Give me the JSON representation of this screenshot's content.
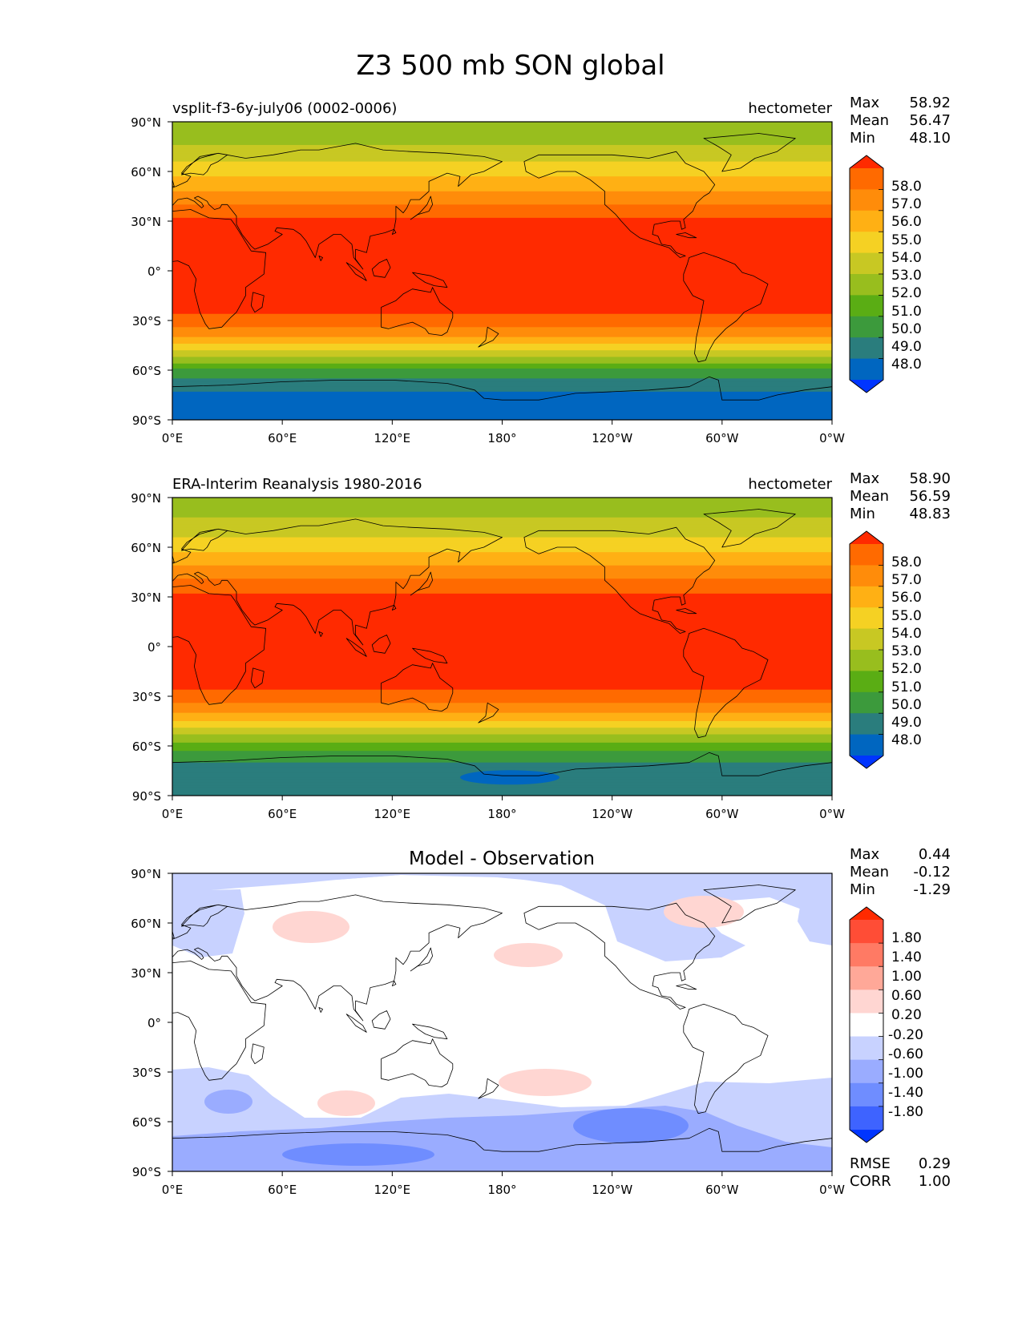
{
  "title": "Z3 500 mb SON global",
  "colors": {
    "abs_levels": [
      "#0035ff",
      "#0066c0",
      "#2a7d7d",
      "#3c9a3c",
      "#5aad14",
      "#98be1e",
      "#c8c823",
      "#f5d123",
      "#ffb014",
      "#ff8c0a",
      "#ff6a00",
      "#ff2a00"
    ],
    "diff_levels": [
      "#0035ff",
      "#3e63ff",
      "#6f8dff",
      "#9aacff",
      "#c8d2ff",
      "#ffffff",
      "#ffd6d2",
      "#ffa898",
      "#ff7a64",
      "#ff4d36",
      "#ff2a00"
    ]
  },
  "chart_data": [
    {
      "type": "heatmap",
      "left_title": "vsplit-f3-6y-july06 (0002-0006)",
      "right_title": "hectometer",
      "stats": [
        {
          "label": "Max",
          "value": "58.92"
        },
        {
          "label": "Mean",
          "value": "56.47"
        },
        {
          "label": "Min",
          "value": "48.10"
        }
      ],
      "x_ticks": [
        "0°E",
        "60°E",
        "120°E",
        "180°",
        "120°W",
        "60°W",
        "0°W"
      ],
      "y_ticks": [
        "90°N",
        "60°N",
        "30°N",
        "0°",
        "30°S",
        "60°S",
        "90°S"
      ],
      "colorbar_labels": [
        "58.0",
        "57.0",
        "56.0",
        "55.0",
        "54.0",
        "53.0",
        "52.0",
        "51.0",
        "50.0",
        "49.0",
        "48.0"
      ],
      "lat_profile": [
        [
          90,
          52.0
        ],
        [
          80,
          52.6
        ],
        [
          70,
          53.6
        ],
        [
          60,
          54.6
        ],
        [
          50,
          55.8
        ],
        [
          40,
          57.0
        ],
        [
          30,
          58.2
        ],
        [
          20,
          58.6
        ],
        [
          0,
          58.7
        ],
        [
          -20,
          58.5
        ],
        [
          -30,
          57.6
        ],
        [
          -40,
          56.0
        ],
        [
          -50,
          53.6
        ],
        [
          -60,
          50.8
        ],
        [
          -70,
          49.2
        ],
        [
          -80,
          48.4
        ],
        [
          -90,
          48.2
        ]
      ]
    },
    {
      "type": "heatmap",
      "left_title": "ERA-Interim Reanalysis 1980-2016",
      "right_title": "hectometer",
      "stats": [
        {
          "label": "Max",
          "value": "58.90"
        },
        {
          "label": "Mean",
          "value": "56.59"
        },
        {
          "label": "Min",
          "value": "48.83"
        }
      ],
      "x_ticks": [
        "0°E",
        "60°E",
        "120°E",
        "180°",
        "120°W",
        "60°W",
        "0°W"
      ],
      "y_ticks": [
        "90°N",
        "60°N",
        "30°N",
        "0°",
        "30°S",
        "60°S",
        "90°S"
      ],
      "colorbar_labels": [
        "58.0",
        "57.0",
        "56.0",
        "55.0",
        "54.0",
        "53.0",
        "52.0",
        "51.0",
        "50.0",
        "49.0",
        "48.0"
      ],
      "lat_profile": [
        [
          90,
          52.5
        ],
        [
          80,
          52.8
        ],
        [
          70,
          53.6
        ],
        [
          60,
          54.6
        ],
        [
          50,
          55.9
        ],
        [
          40,
          57.1
        ],
        [
          30,
          58.2
        ],
        [
          20,
          58.6
        ],
        [
          0,
          58.7
        ],
        [
          -20,
          58.5
        ],
        [
          -30,
          57.6
        ],
        [
          -40,
          56.0
        ],
        [
          -50,
          53.8
        ],
        [
          -60,
          51.4
        ],
        [
          -70,
          50.0
        ],
        [
          -80,
          49.4
        ],
        [
          -90,
          49.2
        ]
      ]
    },
    {
      "type": "heatmap",
      "center_title": "Model - Observation",
      "stats": [
        {
          "label": "Max",
          "value": "0.44"
        },
        {
          "label": "Mean",
          "value": "-0.12"
        },
        {
          "label": "Min",
          "value": "-1.29"
        }
      ],
      "bottom_stats": [
        {
          "label": "RMSE",
          "value": "0.29"
        },
        {
          "label": "CORR",
          "value": "1.00"
        }
      ],
      "x_ticks": [
        "0°E",
        "60°E",
        "120°E",
        "180°",
        "120°W",
        "60°W",
        "0°W"
      ],
      "y_ticks": [
        "90°N",
        "60°N",
        "30°N",
        "0°",
        "30°S",
        "60°S",
        "90°S"
      ],
      "colorbar_labels": [
        "1.80",
        "1.40",
        "1.00",
        "0.60",
        "0.20",
        "-0.20",
        "-0.60",
        "-1.00",
        "-1.40",
        "-1.80"
      ]
    }
  ]
}
